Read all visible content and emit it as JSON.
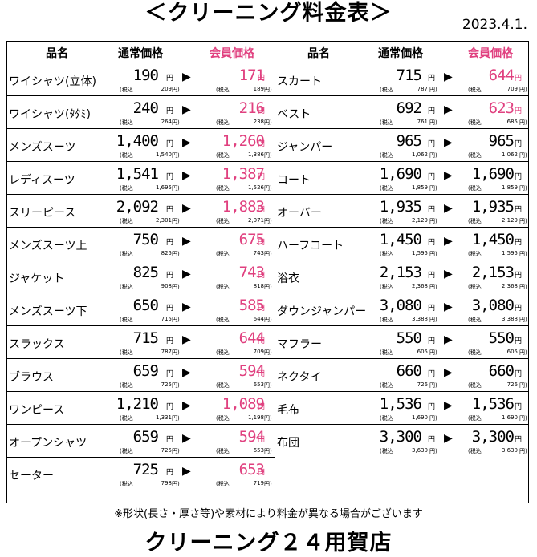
{
  "title": "＜クリーニング料金表＞",
  "date": "2023.4.1.",
  "headers": {
    "name": "品名",
    "regular": "通常価格",
    "member": "会員価格"
  },
  "yen": "円",
  "tax_label": "(税込",
  "tax_close": "円)",
  "arrow": "▶",
  "left_items": [
    {
      "name": "ワイシャツ(立体)",
      "price": "190",
      "tax": "209",
      "member": "171",
      "member_tax": "189",
      "member_pink": true
    },
    {
      "name": "ワイシャツ(ﾀﾀﾐ)",
      "price": "240",
      "tax": "264",
      "member": "216",
      "member_tax": "238",
      "member_pink": true
    },
    {
      "name": "メンズスーツ",
      "price": "1,400",
      "tax": "1,540",
      "member": "1,260",
      "member_tax": "1,386",
      "member_pink": true
    },
    {
      "name": "レディスーツ",
      "price": "1,541",
      "tax": "1,695",
      "member": "1,387",
      "member_tax": "1,526",
      "member_pink": true
    },
    {
      "name": "スリーピース",
      "price": "2,092",
      "tax": "2,301",
      "member": "1,883",
      "member_tax": "2,071",
      "member_pink": true
    },
    {
      "name": "メンズスーツ上",
      "price": "750",
      "tax": "825",
      "member": "675",
      "member_tax": "743",
      "member_pink": true
    },
    {
      "name": "ジャケット",
      "price": "825",
      "tax": "908",
      "member": "743",
      "member_tax": "818",
      "member_pink": true
    },
    {
      "name": "メンズスーツ下",
      "price": "650",
      "tax": "715",
      "member": "585",
      "member_tax": "644",
      "member_pink": true
    },
    {
      "name": "スラックス",
      "price": "715",
      "tax": "787",
      "member": "644",
      "member_tax": "709",
      "member_pink": true
    },
    {
      "name": "ブラウス",
      "price": "659",
      "tax": "725",
      "member": "594",
      "member_tax": "653",
      "member_pink": true
    },
    {
      "name": "ワンピース",
      "price": "1,210",
      "tax": "1,331",
      "member": "1,089",
      "member_tax": "1,198",
      "member_pink": true
    },
    {
      "name": "オープンシャツ",
      "price": "659",
      "tax": "725",
      "member": "594",
      "member_tax": "653",
      "member_pink": true
    },
    {
      "name": "セーター",
      "price": "725",
      "tax": "798",
      "member": "653",
      "member_tax": "719",
      "member_pink": true
    }
  ],
  "right_items": [
    {
      "name": "スカート",
      "price": "715",
      "tax": "787",
      "member": "644",
      "member_tax": "709",
      "member_pink": true
    },
    {
      "name": "ベスト",
      "price": "692",
      "tax": "761",
      "member": "623",
      "member_tax": "685",
      "member_pink": true
    },
    {
      "name": "ジャンパー",
      "price": "965",
      "tax": "1,062",
      "member": "965",
      "member_tax": "1,062",
      "member_pink": false
    },
    {
      "name": "コート",
      "price": "1,690",
      "tax": "1,859",
      "member": "1,690",
      "member_tax": "1,859",
      "member_pink": false
    },
    {
      "name": "オーバー",
      "price": "1,935",
      "tax": "2,129",
      "member": "1,935",
      "member_tax": "2,129",
      "member_pink": false
    },
    {
      "name": "ハーフコート",
      "price": "1,450",
      "tax": "1,595",
      "member": "1,450",
      "member_tax": "1,595",
      "member_pink": false
    },
    {
      "name": "浴衣",
      "price": "2,153",
      "tax": "2,368",
      "member": "2,153",
      "member_tax": "2,368",
      "member_pink": false
    },
    {
      "name": "ダウンジャンパー",
      "price": "3,080",
      "tax": "3,388",
      "member": "3,080",
      "member_tax": "3,388",
      "member_pink": false
    },
    {
      "name": "マフラー",
      "price": "550",
      "tax": "605",
      "member": "550",
      "member_tax": "605",
      "member_pink": false
    },
    {
      "name": "ネクタイ",
      "price": "660",
      "tax": "726",
      "member": "660",
      "member_tax": "726",
      "member_pink": false
    },
    {
      "name": "毛布",
      "price": "1,536",
      "tax": "1,690",
      "member": "1,536",
      "member_tax": "1,690",
      "member_pink": false
    },
    {
      "name": "布団",
      "price": "3,300",
      "tax": "3,630",
      "member": "3,300",
      "member_tax": "3,630",
      "member_pink": false
    }
  ],
  "note": "※形状(長さ・厚さ等)や素材により料金が異なる場合がございます",
  "shop": "クリーニング２４用賀店",
  "colors": {
    "member_accent": "#e0407f",
    "text": "#000000"
  }
}
